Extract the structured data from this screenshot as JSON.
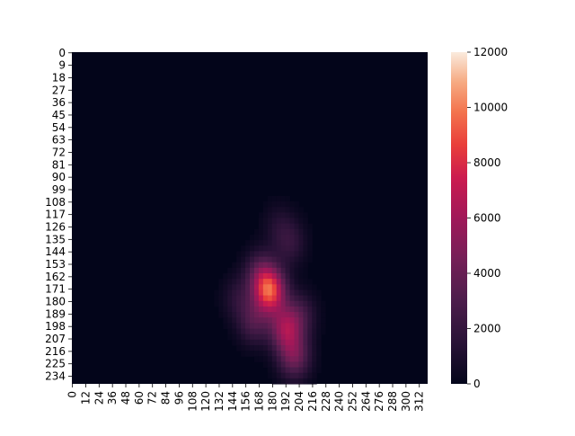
{
  "chart_data": {
    "type": "heatmap",
    "title": "",
    "xlabel": "",
    "ylabel": "",
    "x_range": [
      0,
      320
    ],
    "y_range": [
      0,
      240
    ],
    "x_ticks": [
      "0",
      "12",
      "24",
      "36",
      "48",
      "60",
      "72",
      "84",
      "96",
      "108",
      "120",
      "132",
      "144",
      "156",
      "168",
      "180",
      "192",
      "204",
      "216",
      "228",
      "240",
      "252",
      "264",
      "276",
      "288",
      "300",
      "312"
    ],
    "y_ticks": [
      "0",
      "9",
      "18",
      "27",
      "36",
      "45",
      "54",
      "63",
      "72",
      "81",
      "90",
      "99",
      "108",
      "117",
      "126",
      "135",
      "144",
      "153",
      "162",
      "171",
      "180",
      "189",
      "198",
      "207",
      "216",
      "225",
      "234"
    ],
    "colorbar": {
      "min": 0,
      "max": 12000,
      "ticks": [
        "0",
        "2000",
        "4000",
        "6000",
        "8000",
        "10000",
        "12000"
      ]
    },
    "colormap": "rocket",
    "background_value": 0,
    "hotspots": [
      {
        "x": 178,
        "y": 173,
        "value": 8500
      },
      {
        "x": 192,
        "y": 200,
        "value": 5200
      },
      {
        "x": 200,
        "y": 220,
        "value": 4200
      },
      {
        "x": 170,
        "y": 160,
        "value": 3000
      },
      {
        "x": 164,
        "y": 195,
        "value": 2800
      },
      {
        "x": 196,
        "y": 138,
        "value": 1800
      },
      {
        "x": 186,
        "y": 125,
        "value": 1000
      },
      {
        "x": 150,
        "y": 178,
        "value": 1500
      },
      {
        "x": 205,
        "y": 190,
        "value": 2200
      }
    ]
  }
}
